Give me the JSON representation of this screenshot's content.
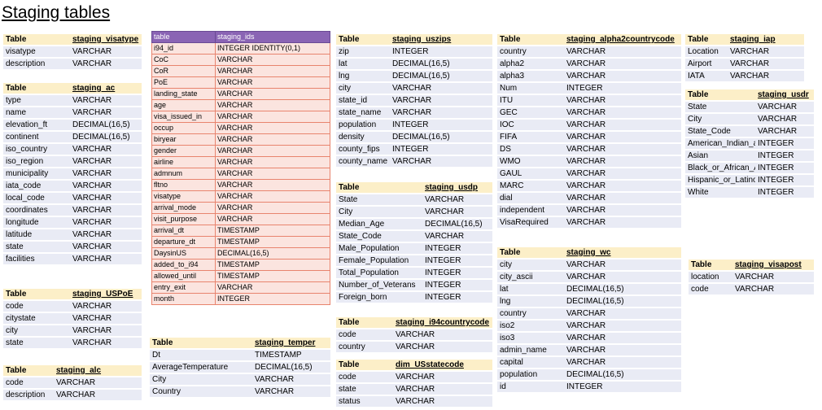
{
  "page_title": "Staging tables",
  "tables": {
    "visatype": {
      "h1": "Table",
      "h2": "staging_visatype",
      "rows": [
        [
          "visatype",
          "VARCHAR"
        ],
        [
          "description",
          "VARCHAR"
        ]
      ]
    },
    "ac": {
      "h1": "Table",
      "h2": "staging_ac",
      "rows": [
        [
          "type",
          "VARCHAR"
        ],
        [
          "name",
          "VARCHAR"
        ],
        [
          "elevation_ft",
          "DECIMAL(16,5)"
        ],
        [
          "continent",
          "DECIMAL(16,5)"
        ],
        [
          "iso_country",
          "VARCHAR"
        ],
        [
          "iso_region",
          "VARCHAR"
        ],
        [
          "municipality",
          "VARCHAR"
        ],
        [
          "iata_code",
          "VARCHAR"
        ],
        [
          "local_code",
          "VARCHAR"
        ],
        [
          "coordinates",
          "VARCHAR"
        ],
        [
          "longitude",
          "VARCHAR"
        ],
        [
          "latitude",
          "VARCHAR"
        ],
        [
          "state",
          "VARCHAR"
        ],
        [
          "facilities",
          "VARCHAR"
        ]
      ]
    },
    "uspoe": {
      "h1": "Table",
      "h2": "staging_USPoE",
      "rows": [
        [
          "code",
          "VARCHAR"
        ],
        [
          "citystate",
          "VARCHAR"
        ],
        [
          "city",
          "VARCHAR"
        ],
        [
          "state",
          "VARCHAR"
        ]
      ]
    },
    "alc": {
      "h1": "Table",
      "h2": "staging_alc",
      "rows": [
        [
          "code",
          "VARCHAR"
        ],
        [
          "description",
          "VARCHAR"
        ]
      ]
    },
    "ids": {
      "h1": "table",
      "h2": "staging_ids",
      "rows": [
        [
          "i94_id",
          "INTEGER IDENTITY(0,1)"
        ],
        [
          "CoC",
          "VARCHAR"
        ],
        [
          "CoR",
          "VARCHAR"
        ],
        [
          "PoE",
          "VARCHAR"
        ],
        [
          "landing_state",
          "VARCHAR"
        ],
        [
          "age",
          "VARCHAR"
        ],
        [
          "visa_issued_in",
          "VARCHAR"
        ],
        [
          "occup",
          "VARCHAR"
        ],
        [
          "biryear",
          "VARCHAR"
        ],
        [
          "gender",
          "VARCHAR"
        ],
        [
          "airline",
          "VARCHAR"
        ],
        [
          "admnum",
          "VARCHAR"
        ],
        [
          "fltno",
          "VARCHAR"
        ],
        [
          "visatype",
          "VARCHAR"
        ],
        [
          "arrival_mode",
          "VARCHAR"
        ],
        [
          "visit_purpose",
          "VARCHAR"
        ],
        [
          "arrival_dt",
          "TIMESTAMP"
        ],
        [
          "departure_dt",
          "TIMESTAMP"
        ],
        [
          "DaysinUS",
          "DECIMAL(16,5)"
        ],
        [
          "added_to_i94",
          "TIMESTAMP"
        ],
        [
          "allowed_until",
          "TIMESTAMP"
        ],
        [
          "entry_exit",
          "VARCHAR"
        ],
        [
          "month",
          "INTEGER"
        ]
      ]
    },
    "temper": {
      "h1": "Table",
      "h2": "staging_temper",
      "rows": [
        [
          "Dt",
          "TIMESTAMP"
        ],
        [
          "AverageTemperature",
          "DECIMAL(16,5)"
        ],
        [
          "City",
          "VARCHAR"
        ],
        [
          "Country",
          "VARCHAR"
        ]
      ]
    },
    "uszips": {
      "h1": "Table",
      "h2": "staging_uszips",
      "rows": [
        [
          "zip",
          "INTEGER"
        ],
        [
          "lat",
          "DECIMAL(16,5)"
        ],
        [
          "lng",
          "DECIMAL(16,5)"
        ],
        [
          "city",
          "VARCHAR"
        ],
        [
          "state_id",
          "VARCHAR"
        ],
        [
          "state_name",
          "VARCHAR"
        ],
        [
          "population",
          "INTEGER"
        ],
        [
          "density",
          "DECIMAL(16,5)"
        ],
        [
          "county_fips",
          "INTEGER"
        ],
        [
          "county_name",
          "VARCHAR"
        ]
      ]
    },
    "usdp": {
      "h1": "Table",
      "h2": "staging_usdp",
      "rows": [
        [
          "State",
          "VARCHAR"
        ],
        [
          "City",
          "VARCHAR"
        ],
        [
          "Median_Age",
          "DECIMAL(16,5)"
        ],
        [
          "State_Code",
          "VARCHAR"
        ],
        [
          "Male_Population",
          "INTEGER"
        ],
        [
          "Female_Population",
          "INTEGER"
        ],
        [
          "Total_Population",
          "INTEGER"
        ],
        [
          "Number_of_Veterans",
          "INTEGER"
        ],
        [
          "Foreign_born",
          "INTEGER"
        ]
      ]
    },
    "i94cc": {
      "h1": "Table",
      "h2": "staging_i94countrycode",
      "rows": [
        [
          "code",
          "VARCHAR"
        ],
        [
          "country",
          "VARCHAR"
        ]
      ]
    },
    "dimus": {
      "h1": "Table",
      "h2": "dim_USstatecode",
      "rows": [
        [
          "code",
          "VARCHAR"
        ],
        [
          "state",
          "VARCHAR"
        ],
        [
          "status",
          "VARCHAR"
        ]
      ]
    },
    "a2cc": {
      "h1": "Table",
      "h2": "staging_alpha2countrycode",
      "rows": [
        [
          "country",
          "VARCHAR"
        ],
        [
          "alpha2",
          "VARCHAR"
        ],
        [
          "alpha3",
          "VARCHAR"
        ],
        [
          "Num",
          "INTEGER"
        ],
        [
          "ITU",
          "VARCHAR"
        ],
        [
          "GEC",
          "VARCHAR"
        ],
        [
          "IOC",
          "VARCHAR"
        ],
        [
          "FIFA",
          "VARCHAR"
        ],
        [
          "DS",
          "VARCHAR"
        ],
        [
          "WMO",
          "VARCHAR"
        ],
        [
          "GAUL",
          "VARCHAR"
        ],
        [
          "MARC",
          "VARCHAR"
        ],
        [
          "dial",
          "VARCHAR"
        ],
        [
          "independent",
          "VARCHAR"
        ],
        [
          "VisaRequired",
          "VARCHAR"
        ]
      ]
    },
    "wc": {
      "h1": "Table",
      "h2": "staging_wc",
      "rows": [
        [
          "city",
          "VARCHAR"
        ],
        [
          "city_ascii",
          "VARCHAR"
        ],
        [
          "lat",
          "DECIMAL(16,5)"
        ],
        [
          "lng",
          "DECIMAL(16,5)"
        ],
        [
          "country",
          "VARCHAR"
        ],
        [
          "iso2",
          "VARCHAR"
        ],
        [
          "iso3",
          "VARCHAR"
        ],
        [
          "admin_name",
          "VARCHAR"
        ],
        [
          "capital",
          "VARCHAR"
        ],
        [
          "population",
          "DECIMAL(16,5)"
        ],
        [
          "id",
          "INTEGER"
        ]
      ]
    },
    "iap": {
      "h1": "Table",
      "h2": "staging_iap",
      "rows": [
        [
          "Location",
          "VARCHAR"
        ],
        [
          "Airport",
          "VARCHAR"
        ],
        [
          "IATA",
          "VARCHAR"
        ]
      ]
    },
    "usdr": {
      "h1": "Table",
      "h2": "staging_usdr",
      "rows": [
        [
          "State",
          "VARCHAR"
        ],
        [
          "City",
          "VARCHAR"
        ],
        [
          "State_Code",
          "VARCHAR"
        ],
        [
          "American_Indian_and_Alaska_Native",
          "INTEGER"
        ],
        [
          "Asian",
          "INTEGER"
        ],
        [
          "Black_or_African_American",
          "INTEGER"
        ],
        [
          "Hispanic_or_Latino",
          "INTEGER"
        ],
        [
          "White",
          "INTEGER"
        ]
      ]
    },
    "visapost": {
      "h1": "Table",
      "h2": "staging_visapost",
      "rows": [
        [
          "location",
          "VARCHAR"
        ],
        [
          "code",
          "VARCHAR"
        ]
      ]
    }
  }
}
